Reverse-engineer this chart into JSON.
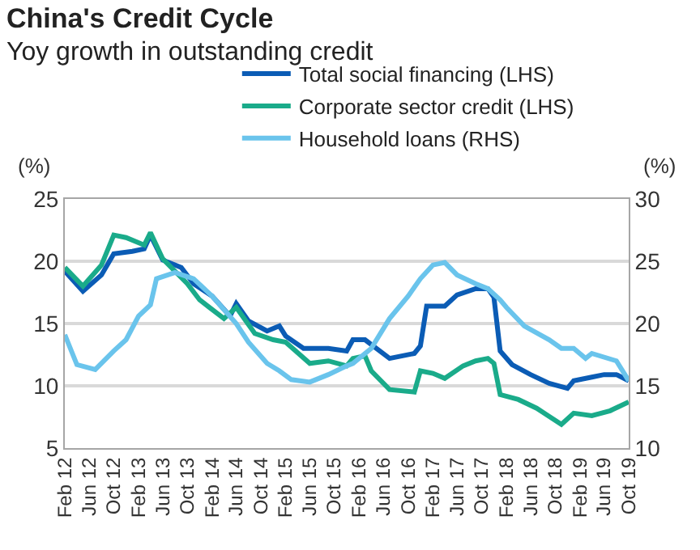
{
  "chart_data": {
    "type": "line",
    "title": "China's Credit Cycle",
    "subtitle": "Yoy growth in outstanding credit",
    "ylabel": "(%)",
    "y2label": "(%)",
    "series": [
      {
        "name": "Total social financing (LHS)",
        "color": "#0b5cb5",
        "x": [
          "2012-02",
          "2012-05",
          "2012-08",
          "2012-10",
          "2013-01",
          "2013-03",
          "2013-04",
          "2013-06",
          "2013-09",
          "2013-11",
          "2014-02",
          "2014-05",
          "2014-06",
          "2014-08",
          "2014-11",
          "2015-01",
          "2015-02",
          "2015-05",
          "2015-09",
          "2015-12",
          "2016-01",
          "2016-03",
          "2016-07",
          "2016-11",
          "2016-12",
          "2017-01",
          "2017-04",
          "2017-06",
          "2017-09",
          "2017-11",
          "2017-12",
          "2018-01",
          "2018-03",
          "2018-06",
          "2018-09",
          "2018-12",
          "2019-01",
          "2019-04",
          "2019-06",
          "2019-08",
          "2019-10"
        ],
        "values": [
          19.2,
          17.6,
          18.9,
          20.6,
          20.8,
          21.0,
          22.1,
          20.1,
          19.5,
          18.2,
          17.2,
          15.6,
          16.6,
          15.2,
          14.4,
          14.8,
          14.0,
          13.0,
          13.0,
          12.8,
          13.7,
          13.7,
          12.2,
          12.6,
          13.2,
          16.4,
          16.4,
          17.3,
          17.8,
          17.8,
          17.1,
          12.8,
          11.7,
          10.9,
          10.2,
          9.8,
          10.4,
          10.7,
          10.9,
          10.9,
          10.4
        ]
      },
      {
        "name": "Corporate sector credit (LHS)",
        "color": "#1aab8a",
        "x": [
          "2012-02",
          "2012-05",
          "2012-08",
          "2012-10",
          "2012-12",
          "2013-03",
          "2013-04",
          "2013-06",
          "2013-10",
          "2013-12",
          "2014-04",
          "2014-06",
          "2014-09",
          "2014-12",
          "2015-02",
          "2015-06",
          "2015-09",
          "2015-12",
          "2016-01",
          "2016-03",
          "2016-04",
          "2016-07",
          "2016-11",
          "2016-12",
          "2017-02",
          "2017-04",
          "2017-07",
          "2017-09",
          "2017-11",
          "2017-12",
          "2018-01",
          "2018-04",
          "2018-07",
          "2018-11",
          "2019-01",
          "2019-04",
          "2019-07",
          "2019-10"
        ],
        "values": [
          19.5,
          18.0,
          19.7,
          22.1,
          21.9,
          21.3,
          22.3,
          20.2,
          18.2,
          16.9,
          15.4,
          16.3,
          14.2,
          13.7,
          13.5,
          11.8,
          12.0,
          11.6,
          12.2,
          12.4,
          11.2,
          9.7,
          9.5,
          11.2,
          11.0,
          10.6,
          11.6,
          12.0,
          12.2,
          11.8,
          9.3,
          8.9,
          8.2,
          6.9,
          7.8,
          7.6,
          8.0,
          8.7
        ]
      },
      {
        "name": "Household loans (RHS)",
        "color": "#6ac4ec",
        "axis": "y2",
        "x": [
          "2012-02",
          "2012-04",
          "2012-07",
          "2012-10",
          "2012-12",
          "2013-02",
          "2013-04",
          "2013-05",
          "2013-08",
          "2013-11",
          "2014-02",
          "2014-06",
          "2014-08",
          "2014-11",
          "2015-01",
          "2015-03",
          "2015-06",
          "2015-09",
          "2015-12",
          "2016-01",
          "2016-04",
          "2016-07",
          "2016-10",
          "2016-12",
          "2017-02",
          "2017-04",
          "2017-06",
          "2017-09",
          "2017-11",
          "2018-01",
          "2018-02",
          "2018-05",
          "2018-09",
          "2018-11",
          "2019-01",
          "2019-03",
          "2019-04",
          "2019-08",
          "2019-10"
        ],
        "values": [
          19.1,
          16.7,
          16.3,
          17.8,
          18.7,
          20.6,
          21.5,
          23.6,
          24.1,
          23.6,
          22.2,
          20.0,
          18.5,
          16.8,
          16.2,
          15.5,
          15.3,
          15.9,
          16.6,
          16.8,
          18.0,
          20.4,
          22.2,
          23.6,
          24.7,
          24.9,
          23.9,
          23.2,
          22.8,
          21.9,
          21.3,
          19.8,
          18.7,
          18.0,
          18.0,
          17.2,
          17.6,
          17.0,
          15.4
        ]
      }
    ],
    "xlim": [
      "2012-02",
      "2019-10"
    ],
    "xticks": [
      {
        "value": "2012-02",
        "label": "Feb 12"
      },
      {
        "value": "2012-06",
        "label": "Jun 12"
      },
      {
        "value": "2012-10",
        "label": "Oct 12"
      },
      {
        "value": "2013-02",
        "label": "Feb 13"
      },
      {
        "value": "2013-06",
        "label": "Jun 13"
      },
      {
        "value": "2013-10",
        "label": "Oct 13"
      },
      {
        "value": "2014-02",
        "label": "Feb 14"
      },
      {
        "value": "2014-06",
        "label": "Jun 14"
      },
      {
        "value": "2014-10",
        "label": "Oct 14"
      },
      {
        "value": "2015-02",
        "label": "Feb 15"
      },
      {
        "value": "2015-06",
        "label": "Jun 15"
      },
      {
        "value": "2015-10",
        "label": "Oct 15"
      },
      {
        "value": "2016-02",
        "label": "Feb 16"
      },
      {
        "value": "2016-06",
        "label": "Jun 16"
      },
      {
        "value": "2016-10",
        "label": "Oct 16"
      },
      {
        "value": "2017-02",
        "label": "Feb 17"
      },
      {
        "value": "2017-06",
        "label": "Jun 17"
      },
      {
        "value": "2017-10",
        "label": "Oct 17"
      },
      {
        "value": "2018-02",
        "label": "Feb 18"
      },
      {
        "value": "2018-06",
        "label": "Jun 18"
      },
      {
        "value": "2018-10",
        "label": "Oct 18"
      },
      {
        "value": "2019-02",
        "label": "Feb 19"
      },
      {
        "value": "2019-06",
        "label": "Jun 19"
      },
      {
        "value": "2019-10",
        "label": "Oct 19"
      }
    ],
    "ylim": [
      5,
      25
    ],
    "yticks": [
      5,
      10,
      15,
      20,
      25
    ],
    "y2lim": [
      10,
      30
    ],
    "y2ticks": [
      10,
      15,
      20,
      25,
      30
    ],
    "grid": "y",
    "legend": "top",
    "marker": "none",
    "line_style": "solid"
  }
}
